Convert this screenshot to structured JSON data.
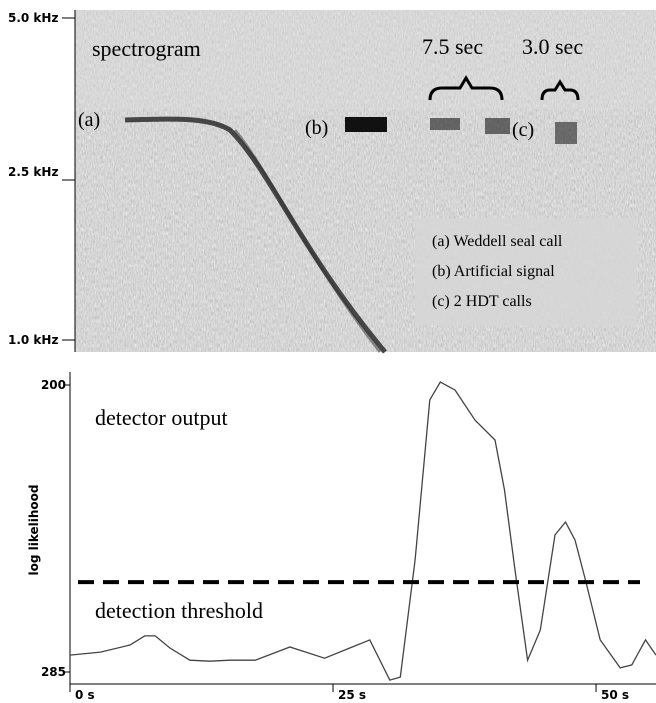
{
  "spectrogram": {
    "title": "spectrogram",
    "yticks": [
      "5.0 kHz",
      "2.5 kHz",
      "1.0 kHz"
    ],
    "markers": [
      "(a)",
      "(b)",
      "(c)"
    ],
    "durations": [
      "7.5 sec",
      "3.0 sec"
    ],
    "legend": [
      "(a) Weddell seal call",
      "(b) Artificial signal",
      "(c) 2 HDT calls"
    ]
  },
  "chart_data": {
    "type": "line",
    "ylabel": "log likelihood",
    "annotation": "detector output",
    "x": [
      0,
      2.9,
      5.7,
      7.1,
      8.1,
      9.5,
      11.4,
      13.3,
      15.2,
      17.6,
      20.9,
      24.2,
      26.6,
      28.5,
      30.4,
      31.4,
      32.8,
      34.2,
      35.2,
      36.6,
      38.5,
      40.4,
      41.3,
      42.3,
      43.5,
      44.7,
      46.1,
      47.1,
      48.0,
      49.0,
      50.4,
      52.3,
      53.4,
      54.7,
      55.7
    ],
    "series": [
      {
        "color": "#444444",
        "values": [
          280,
          279.1,
          277,
          274.3,
          274.3,
          277.9,
          281.5,
          281.8,
          281.5,
          281.5,
          277.6,
          280.9,
          277.9,
          275.5,
          287.4,
          286.5,
          251.8,
          204.4,
          199.1,
          201.5,
          210.4,
          216.3,
          231.1,
          254.8,
          281.5,
          272.6,
          244.4,
          240.6,
          245.9,
          257.8,
          275.5,
          283.8,
          282.9,
          275.5,
          280
        ]
      }
    ],
    "threshold": {
      "value": 258.4,
      "label": "detection threshold"
    },
    "xlim": [
      0,
      55.7
    ],
    "ylim": [
      285,
      200
    ],
    "xticks": [
      {
        "value": 0,
        "label": "0 s"
      },
      {
        "value": 25,
        "label": "25 s"
      },
      {
        "value": 50,
        "label": "50 s"
      }
    ],
    "yticks": [
      200,
      285
    ]
  }
}
